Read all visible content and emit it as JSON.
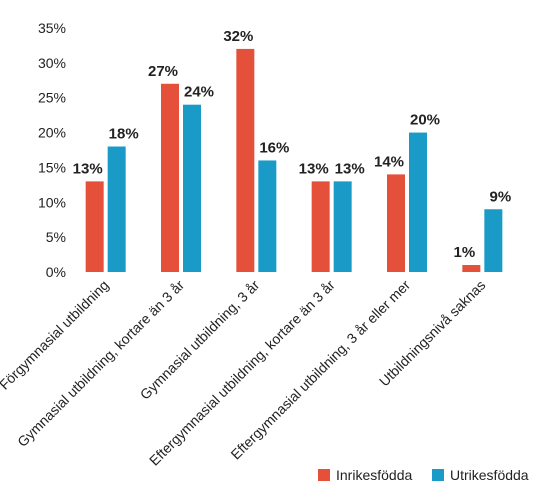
{
  "chart_data": {
    "type": "bar",
    "categories": [
      "Förgymnasial utbildning",
      "Gymnasial utbildning, kortare än 3 år",
      "Gymnasial utbildning, 3 år",
      "Eftergymnasial utbildning, kortare än 3 år",
      "Eftergymnasial utbildning, 3 år eller mer",
      "Utbildningsnivå saknas"
    ],
    "series": [
      {
        "name": "Inrikesfödda",
        "color": "#E4503A",
        "values": [
          13,
          27,
          32,
          13,
          14,
          1
        ]
      },
      {
        "name": "Utrikesfödda",
        "color": "#1A9BC7",
        "values": [
          18,
          24,
          16,
          13,
          20,
          9
        ]
      }
    ],
    "data_labels": [
      [
        "13%",
        "27%",
        "32%",
        "13%",
        "14%",
        "1%"
      ],
      [
        "18%",
        "24%",
        "16%",
        "13%",
        "20%",
        "9%"
      ]
    ],
    "yticks": [
      "0%",
      "5%",
      "10%",
      "15%",
      "20%",
      "25%",
      "30%",
      "35%"
    ],
    "ylim": [
      0,
      35
    ],
    "grid": false,
    "legend": "bottom-right"
  }
}
